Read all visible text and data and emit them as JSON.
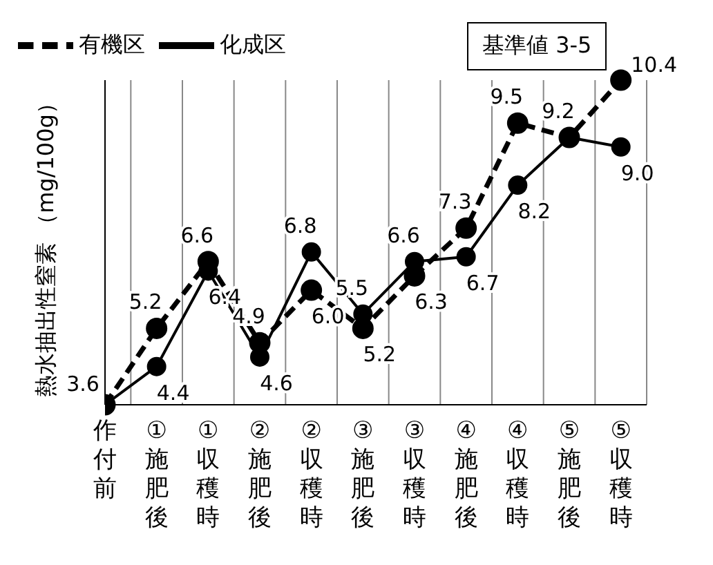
{
  "chart_data": {
    "type": "line",
    "ylabel": "熱水抽出性窒素 （mg/100g）",
    "categories": [
      "作付前",
      "①施肥後",
      "①収穫時",
      "②施肥後",
      "②収穫時",
      "③施肥後",
      "③収穫時",
      "④施肥後",
      "④収穫時",
      "⑤施肥後",
      "⑤収穫時"
    ],
    "series": [
      {
        "name": "有機区",
        "color": "#000000",
        "line_style": "dashed",
        "values": [
          3.6,
          5.2,
          6.6,
          4.9,
          6.0,
          5.2,
          6.3,
          7.3,
          9.5,
          9.2,
          10.4
        ],
        "value_labels": [
          "3.6",
          "5.2",
          "6.6",
          "4.9",
          "6.0",
          "5.2",
          "6.3",
          "7.3",
          "9.5",
          "9.2",
          "10.4"
        ]
      },
      {
        "name": "化成区",
        "color": "#000000",
        "line_style": "solid",
        "values": [
          3.6,
          4.4,
          6.4,
          4.6,
          6.8,
          5.5,
          6.6,
          6.7,
          8.2,
          9.2,
          9.0
        ],
        "value_labels": [
          null,
          "4.4",
          "6.4",
          "4.6",
          "6.8",
          "5.5",
          "6.6",
          "6.7",
          "8.2",
          null,
          "9.0"
        ]
      }
    ],
    "marker": "circle",
    "grid": "x",
    "legend": "top left",
    "tick_labels": "x",
    "annotations": [
      "基準値 3-5"
    ]
  }
}
